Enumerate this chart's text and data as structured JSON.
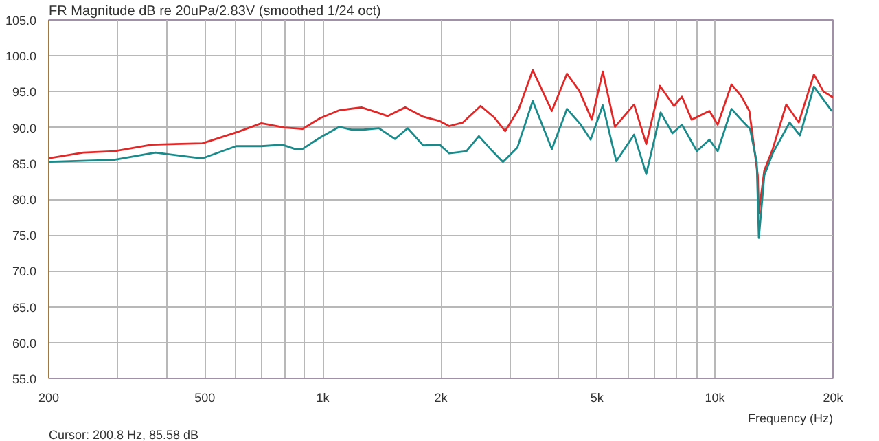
{
  "chart_data": {
    "type": "line",
    "title": "FR Magnitude dB re 20uPa/2.83V (smoothed 1/24 oct)",
    "xlabel": "Frequency (Hz)",
    "log": "x",
    "grid": true,
    "line_style": "solid",
    "marker": "none",
    "annotations": [
      "Cursor: 200.8 Hz, 85.58 dB"
    ],
    "xlim": [
      200,
      20000
    ],
    "ylim": [
      55,
      105
    ],
    "xticks": [
      200,
      {
        "value": 300,
        "label": null
      },
      {
        "value": 400,
        "label": null
      },
      500,
      {
        "value": 600,
        "label": null
      },
      {
        "value": 700,
        "label": null
      },
      {
        "value": 800,
        "label": null
      },
      {
        "value": 900,
        "label": null
      },
      {
        "value": 1000,
        "label": "1k"
      },
      {
        "value": 2000,
        "label": "2k"
      },
      {
        "value": 3000,
        "label": null
      },
      {
        "value": 4000,
        "label": null
      },
      {
        "value": 5000,
        "label": "5k"
      },
      {
        "value": 6000,
        "label": null
      },
      {
        "value": 7000,
        "label": null
      },
      {
        "value": 8000,
        "label": null
      },
      {
        "value": 9000,
        "label": null
      },
      {
        "value": 10000,
        "label": "10k"
      },
      {
        "value": 20000,
        "label": "20k"
      }
    ],
    "yticks": [
      {
        "value": 55,
        "label": "55.0"
      },
      {
        "value": 60,
        "label": "60.0"
      },
      {
        "value": 65,
        "label": "65.0"
      },
      {
        "value": 70,
        "label": "70.0"
      },
      {
        "value": 75,
        "label": "75.0"
      },
      {
        "value": 80,
        "label": "80.0"
      },
      {
        "value": 85,
        "label": "85.0"
      },
      {
        "value": 90,
        "label": "90.0"
      },
      {
        "value": 95,
        "label": "95.0"
      },
      {
        "value": 100,
        "label": "100.0"
      },
      {
        "value": 105,
        "label": "105.0"
      }
    ],
    "series": [
      {
        "color": "#e02828",
        "x": [
          200,
          245,
          294,
          366,
          493,
          608,
          697,
          798,
          887,
          984,
          1102,
          1254,
          1358,
          1462,
          1622,
          1803,
          1986,
          2100,
          2276,
          2526,
          2736,
          2918,
          3162,
          3430,
          3838,
          4194,
          4510,
          4852,
          5176,
          5560,
          6220,
          6680,
          7240,
          7860,
          8240,
          8720,
          9680,
          10160,
          11020,
          11660,
          12240,
          12860,
          12940,
          13360,
          14040,
          15200,
          16360,
          17880,
          18920,
          20000
        ],
        "values": [
          85.7,
          86.5,
          86.7,
          87.6,
          87.8,
          89.4,
          90.6,
          90.0,
          89.8,
          91.3,
          92.4,
          92.8,
          92.2,
          91.6,
          92.8,
          91.5,
          90.9,
          90.2,
          90.7,
          93.0,
          91.4,
          89.5,
          92.6,
          98.0,
          92.3,
          97.5,
          95.1,
          91.1,
          97.8,
          90.1,
          93.2,
          87.7,
          95.8,
          93.0,
          94.3,
          91.1,
          92.3,
          90.4,
          96.0,
          94.4,
          92.3,
          83.3,
          78.1,
          84.0,
          87.0,
          93.2,
          90.7,
          97.4,
          95.0,
          94.2
        ]
      },
      {
        "color": "#1a8a8a",
        "x": [
          200,
          294,
          374,
          472,
          493,
          601,
          697,
          788,
          849,
          887,
          984,
          1102,
          1182,
          1269,
          1390,
          1528,
          1646,
          1803,
          1986,
          2100,
          2323,
          2500,
          2676,
          2880,
          3134,
          3430,
          3838,
          4194,
          4548,
          4818,
          5176,
          5602,
          6220,
          6680,
          7270,
          7790,
          8240,
          8990,
          9680,
          10160,
          11020,
          11660,
          12290,
          12780,
          12940,
          13360,
          14040,
          15510,
          16470,
          17880,
          19860
        ],
        "values": [
          85.2,
          85.5,
          86.5,
          85.8,
          85.7,
          87.4,
          87.4,
          87.6,
          87.0,
          87.0,
          88.6,
          90.1,
          89.7,
          89.7,
          89.9,
          88.4,
          89.9,
          87.5,
          87.6,
          86.4,
          86.7,
          88.8,
          87.0,
          85.2,
          87.2,
          93.7,
          87.0,
          92.6,
          90.4,
          88.3,
          93.1,
          85.3,
          89.0,
          83.5,
          92.1,
          89.2,
          90.4,
          86.7,
          88.3,
          86.7,
          92.6,
          91.1,
          89.8,
          85.2,
          74.6,
          83.3,
          86.4,
          90.7,
          88.9,
          95.7,
          92.3
        ]
      }
    ]
  }
}
